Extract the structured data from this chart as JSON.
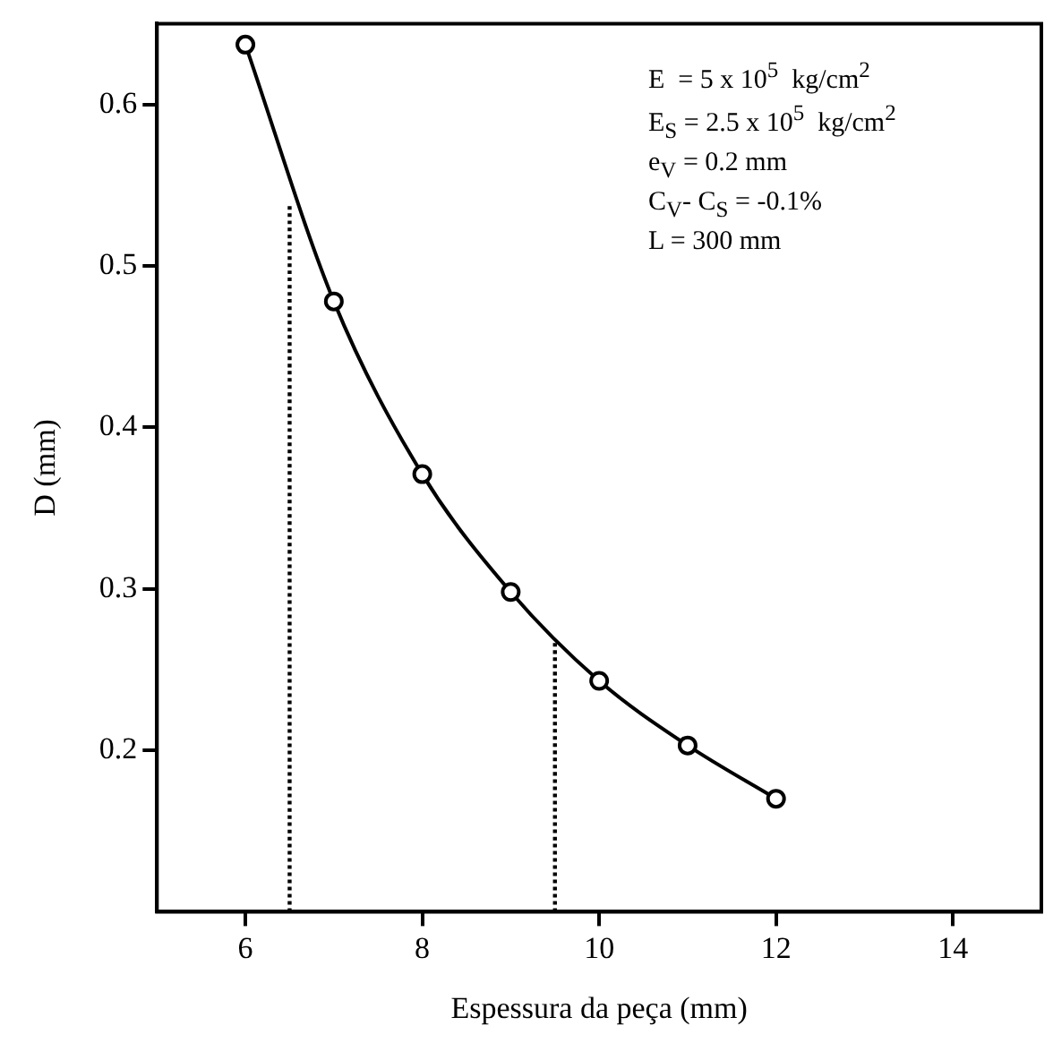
{
  "chart_data": {
    "type": "line",
    "xlabel": "Espessura da peça (mm)",
    "ylabel": "D (mm)",
    "xlim": [
      5,
      15
    ],
    "ylim": [
      0.1,
      0.65
    ],
    "xticks": [
      6,
      8,
      10,
      12,
      14
    ],
    "yticks": [
      0.2,
      0.3,
      0.4,
      0.5,
      0.6
    ],
    "marker": "circle",
    "line_style": "solid",
    "grid": false,
    "series": [
      {
        "color": "#000000",
        "x": [
          6,
          7,
          8,
          9,
          10,
          11,
          12
        ],
        "values": [
          0.637,
          0.478,
          0.371,
          0.298,
          0.243,
          0.203,
          0.17
        ]
      },
      {
        "color": "#000000",
        "x": [
          6.5,
          6.5
        ],
        "values": [
          0.1,
          0.539
        ],
        "line_style": "dotted",
        "marker": "none"
      },
      {
        "color": "#000000",
        "x": [
          9.5,
          9.5
        ],
        "values": [
          0.1,
          0.267
        ],
        "line_style": "dotted",
        "marker": "none"
      }
    ],
    "annotations": [
      "E  = 5 x 10$^{5}$  kg/cm$^{2}$",
      "E$_{S}$ = 2.5 x 10$^{5}$  kg/cm$^{2}$",
      "e$_{V}$ = 0.2 mm",
      "C$_{V}$- C$_{S}$ = -0.1%",
      "L = 300 mm"
    ]
  }
}
